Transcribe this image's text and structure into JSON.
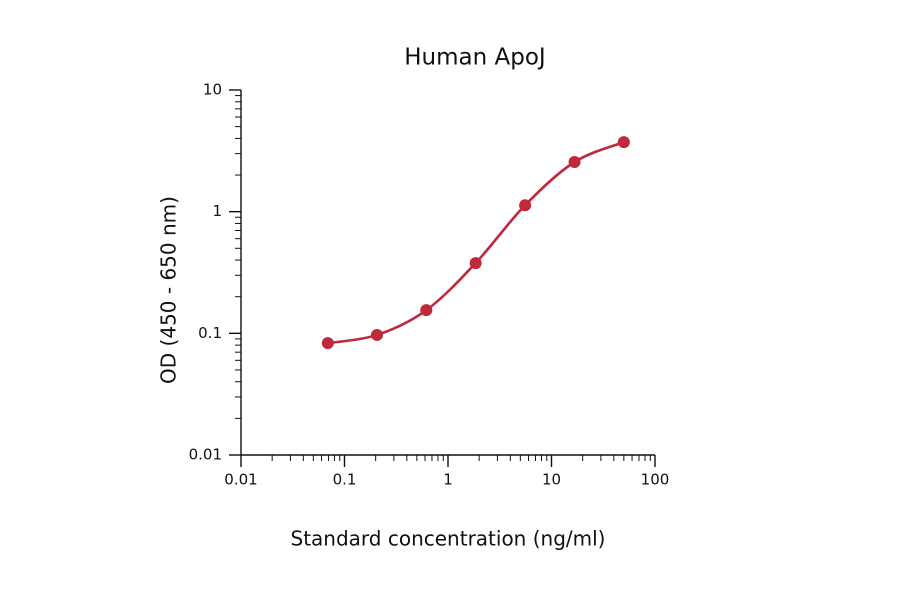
{
  "chart_data": {
    "type": "scatter",
    "title": "Human ApoJ",
    "x_label": "Standard concentration (ng/ml)",
    "y_label": "OD (450 - 650 nm)",
    "x_log": true,
    "y_log": true,
    "minor_ticks": true,
    "color": "#c0283c",
    "x": [
      0.069,
      0.206,
      0.617,
      1.85,
      5.56,
      16.7,
      50
    ],
    "series": [
      {
        "name": "Human ApoJ",
        "color": "#c0283c",
        "values": [
          0.083,
          0.097,
          0.155,
          0.378,
          1.13,
          2.56,
          3.73
        ]
      }
    ],
    "xlim": [
      0.01,
      100
    ],
    "xticks": [
      0.01,
      0.1,
      1,
      10,
      100
    ],
    "ylim": [
      0.01,
      10
    ],
    "yticks": [
      0.01,
      0.1,
      1,
      10
    ]
  }
}
